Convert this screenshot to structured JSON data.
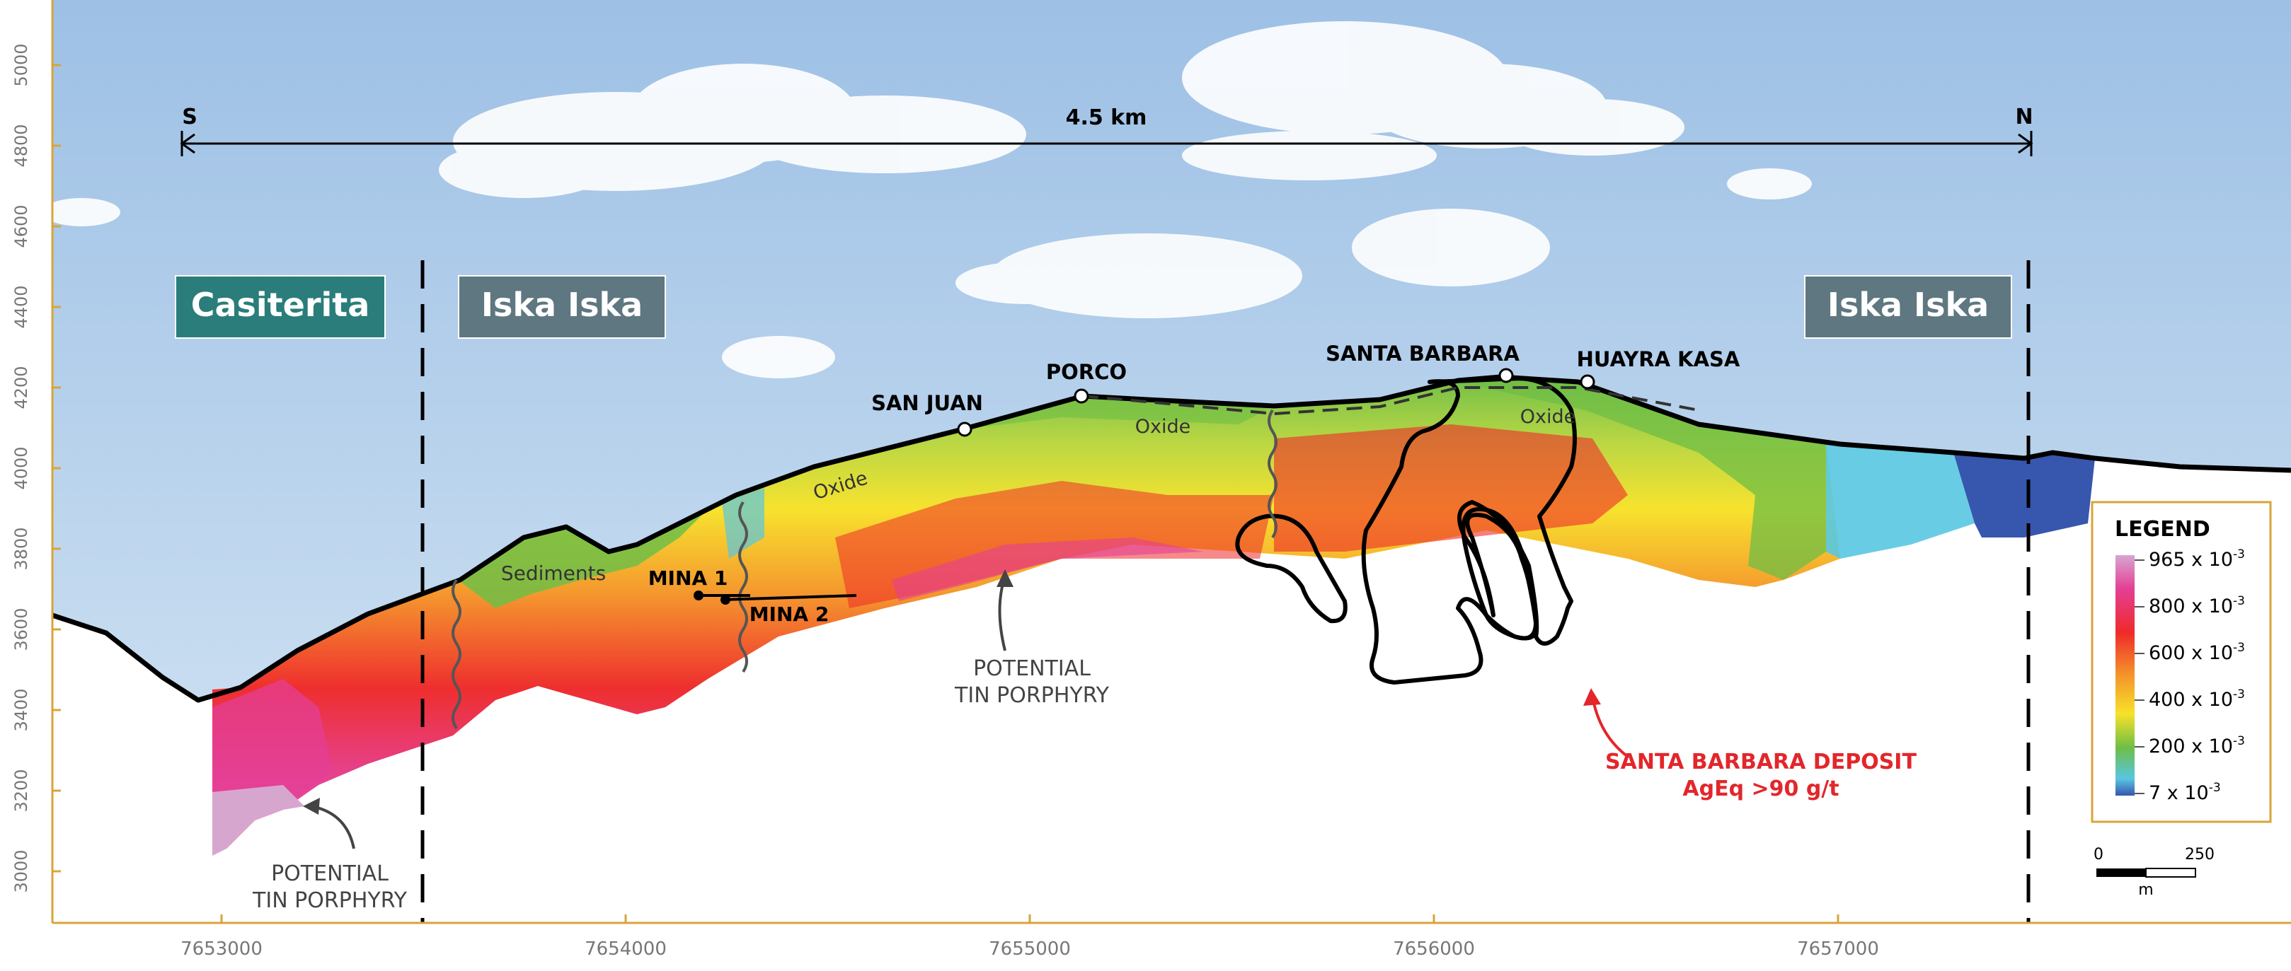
{
  "section": {
    "south_label": "S",
    "north_label": "N",
    "scale_length": "4.5 km"
  },
  "zones": [
    {
      "name": "Casiterita",
      "color": "#2a7d7a"
    },
    {
      "name": "Iska Iska",
      "color": "#5e7780"
    },
    {
      "name": "Iska Iska",
      "color": "#5e7780"
    }
  ],
  "sites": [
    "SAN JUAN",
    "PORCO",
    "SANTA BARBARA",
    "HUAYRA KASA"
  ],
  "labels": {
    "oxide": "Oxide",
    "sediments": "Sediments",
    "mina1": "MINA 1",
    "mina2": "MINA 2",
    "porphyry_line1": "POTENTIAL",
    "porphyry_line2": "TIN PORPHYRY",
    "deposit_line1": "SANTA BARBARA DEPOSIT",
    "deposit_line2": "AgEq >90 g/t"
  },
  "legend": {
    "title": "LEGEND",
    "items": [
      {
        "base": "965 x 10",
        "exp": "-3"
      },
      {
        "base": "800 x 10",
        "exp": "-3"
      },
      {
        "base": "600 x 10",
        "exp": "-3"
      },
      {
        "base": "400 x 10",
        "exp": "-3"
      },
      {
        "base": "200 x 10",
        "exp": "-3"
      },
      {
        "base": "7 x 10",
        "exp": "-3"
      }
    ],
    "colors": [
      "#d7a6cf",
      "#e43f95",
      "#ee2a2a",
      "#f4952a",
      "#f7e22a",
      "#6fbe45",
      "#58c6e2",
      "#3756ad"
    ]
  },
  "scale_bar": {
    "min": "0",
    "max": "250",
    "unit": "m"
  },
  "axes": {
    "y_ticks": [
      "5000",
      "4800",
      "4600",
      "4400",
      "4200",
      "4000",
      "3800",
      "3600",
      "3400",
      "3200",
      "3000"
    ],
    "x_ticks": [
      "7653000",
      "7654000",
      "7655000",
      "7656000",
      "7657000"
    ]
  },
  "colors": {
    "axis": "#d8a43a",
    "deposit": "#e3262b",
    "sky_top": "#9fc2e6",
    "sky_bottom": "#dbe9f5"
  }
}
